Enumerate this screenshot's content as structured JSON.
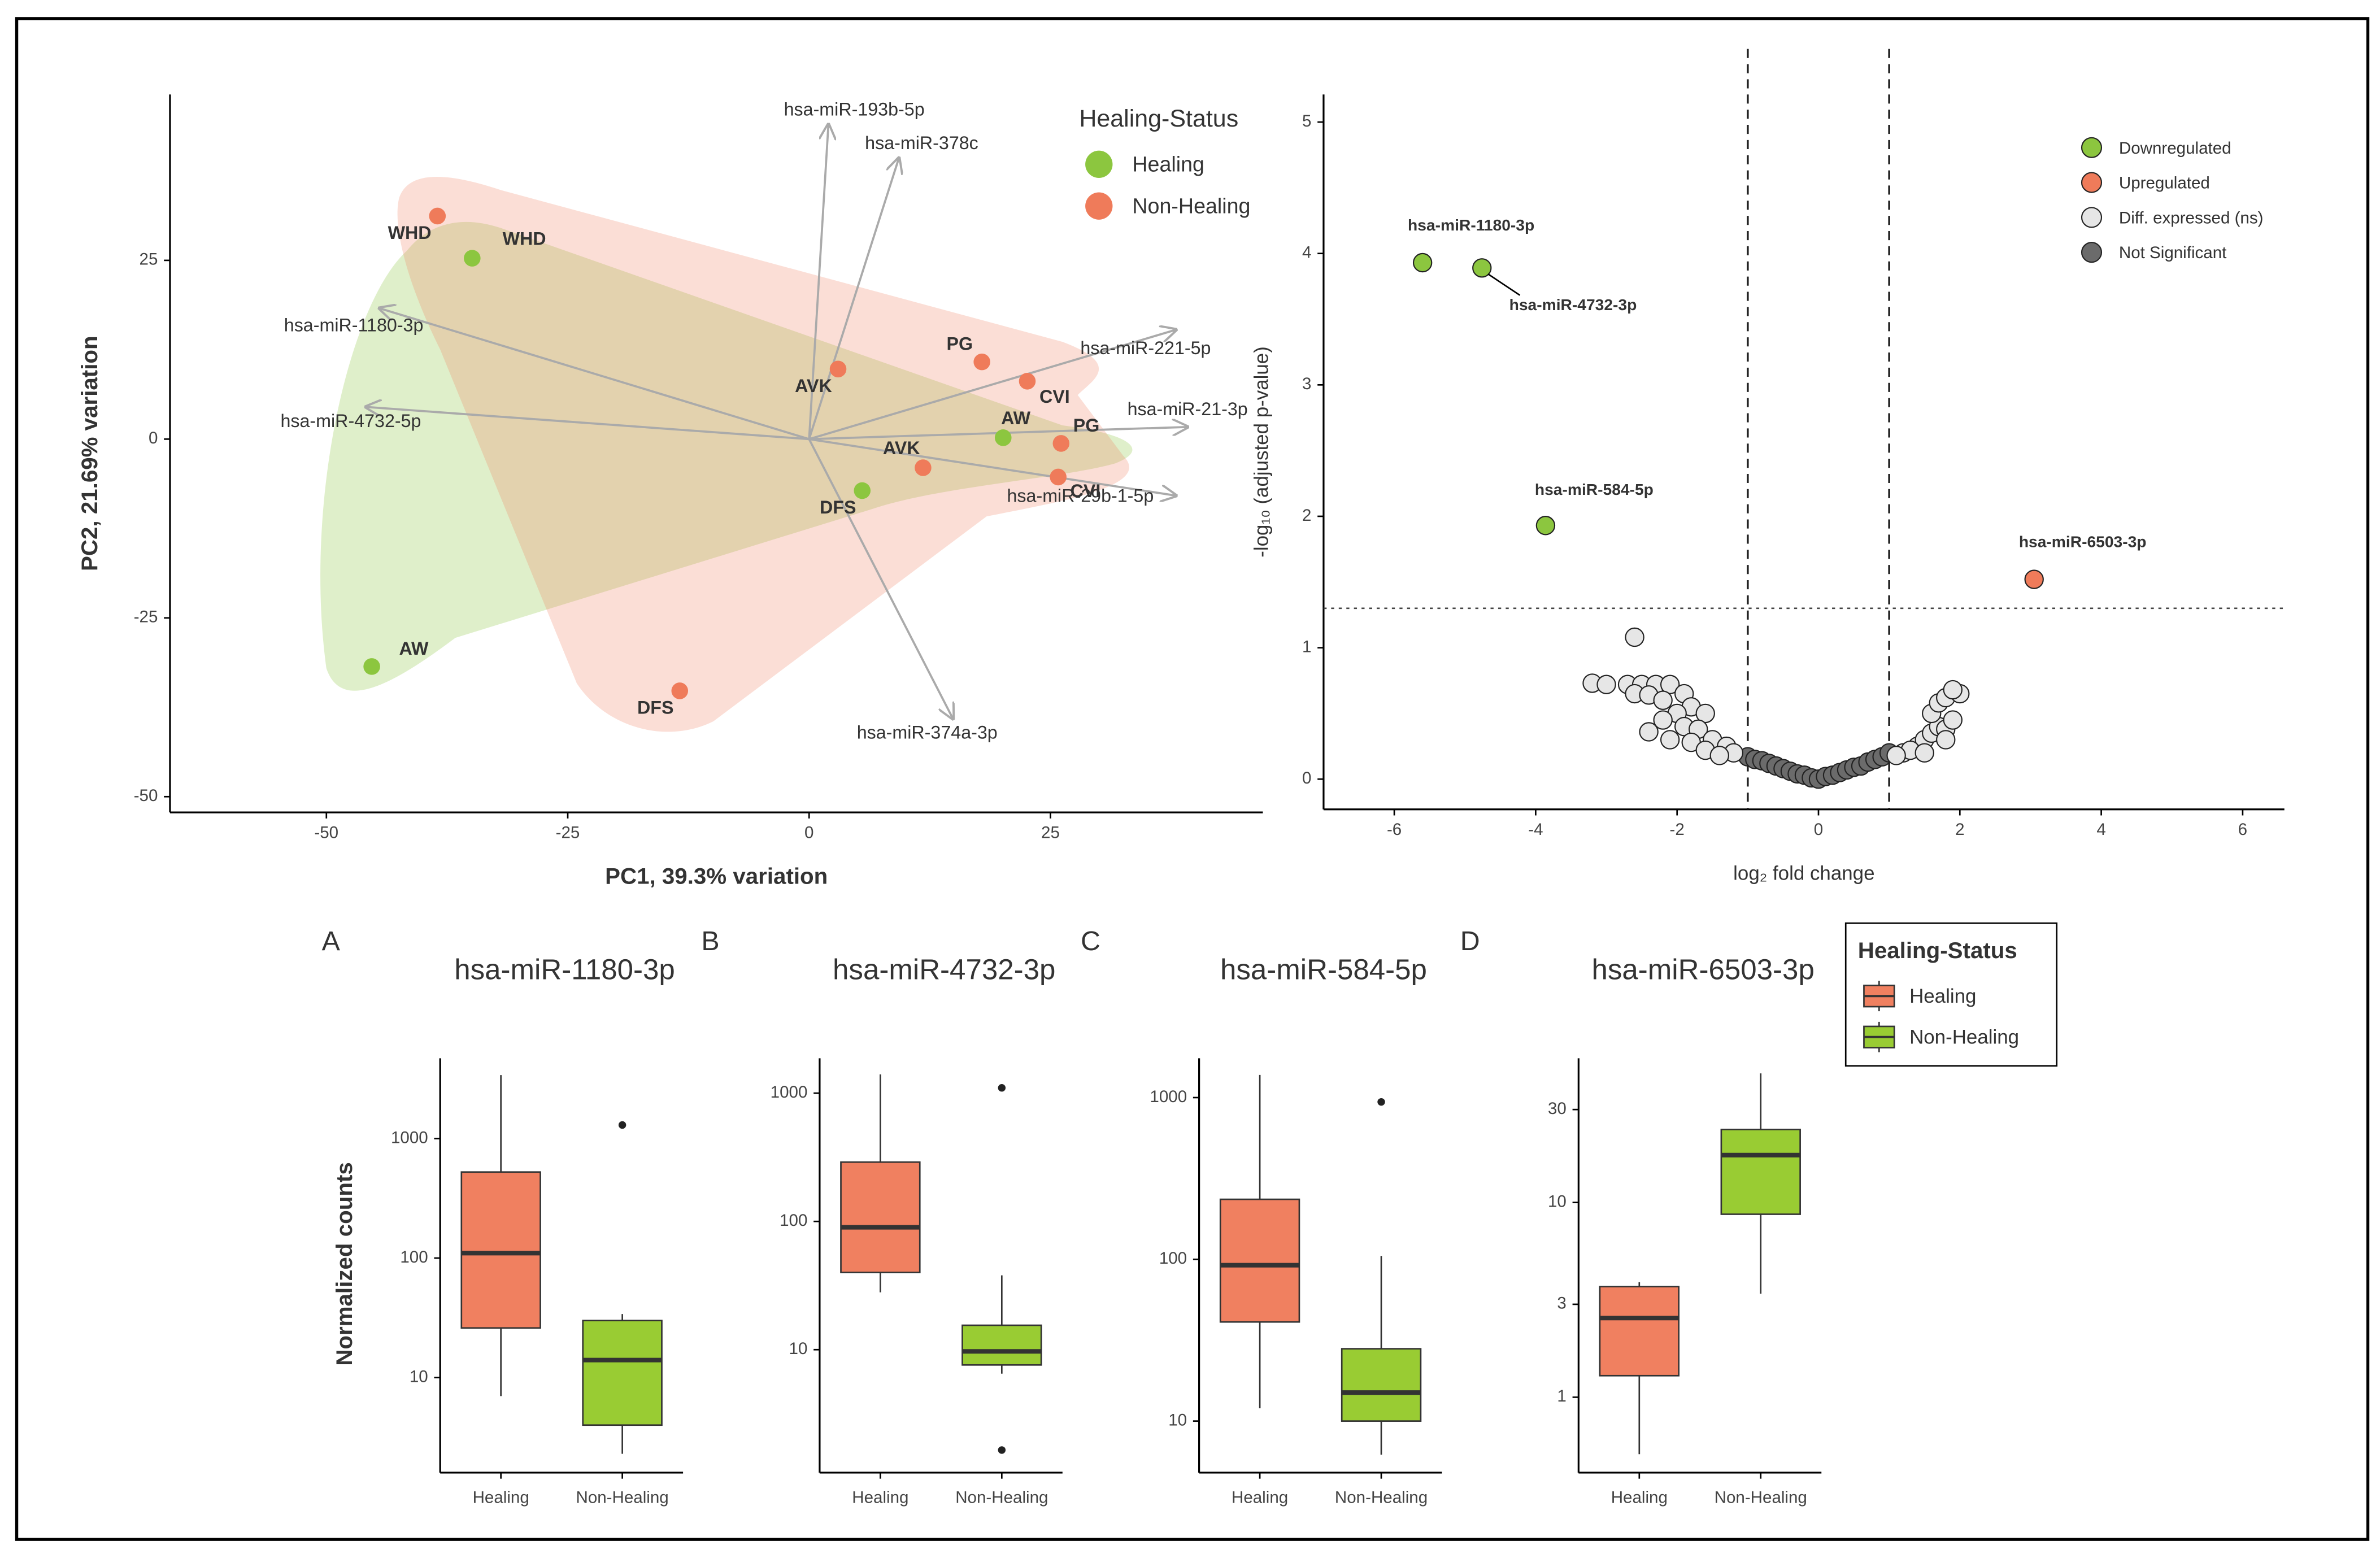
{
  "chart_data": [
    {
      "type": "scatter",
      "x_label": "PC1, 39.3% variation",
      "y_label": "PC2, 21.69% variation",
      "legend_title": "Healing-Status",
      "legend_position": "top-right",
      "xlim": [
        -66.2,
        47
      ],
      "ylim": [
        -52.2,
        48.2
      ],
      "xticks": [
        -50,
        -25,
        0,
        25
      ],
      "yticks": [
        -50,
        -25,
        0,
        25
      ],
      "series": [
        {
          "name": "Healing",
          "color": "#8cc63f",
          "x": [
            -34.9,
            20.1,
            5.5,
            -45.3
          ],
          "values": [
            25.3,
            0.2,
            -7.2,
            -31.8
          ],
          "point_labels": [
            "WHD",
            "AW",
            "DFS",
            "AW"
          ]
        },
        {
          "name": "Non-Healing",
          "color": "#ef7b5a",
          "x": [
            -38.5,
            3,
            17.9,
            22.6,
            26.1,
            11.8,
            25.8,
            -13.4
          ],
          "values": [
            31.2,
            9.8,
            10.8,
            8.1,
            -0.6,
            -4,
            -5.3,
            -35.2
          ],
          "point_labels": [
            "WHD",
            "AVK",
            "PG",
            "CVI",
            "PG",
            "AVK",
            "CVI",
            "DFS"
          ]
        }
      ],
      "loadings": [
        {
          "name": "hsa-miR-193b-5p",
          "x": 2,
          "y": 44
        },
        {
          "name": "hsa-miR-378c",
          "x": 9.3,
          "y": 39.3
        },
        {
          "name": "hsa-miR-1180-3p",
          "x": -44.5,
          "y": 18.3
        },
        {
          "name": "hsa-miR-4732-5p",
          "x": -45.9,
          "y": 4.5
        },
        {
          "name": "hsa-miR-221-5p",
          "x": 38,
          "y": 15.3
        },
        {
          "name": "hsa-miR-21-3p",
          "x": 39.2,
          "y": 1.7
        },
        {
          "name": "hsa-miR-29b-1-5p",
          "x": 38,
          "y": -7.9
        },
        {
          "name": "hsa-miR-374a-3p",
          "x": 14.9,
          "y": -39.1
        }
      ]
    },
    {
      "type": "scatter",
      "x_label": "log₂ fold change",
      "y_label": "-log₁₀ (adjusted p-value)",
      "legend_position": "top-right",
      "xlim": [
        -7,
        6.59
      ],
      "ylim": [
        -0.23,
        5.21
      ],
      "xticks": [
        -6,
        -4,
        -2,
        0,
        2,
        4,
        6
      ],
      "yticks": [
        0,
        1,
        2,
        3,
        4,
        5
      ],
      "vlines": [
        -1,
        1
      ],
      "hline": 1.3,
      "series": [
        {
          "name": "Downregulated",
          "color": "#8cc63f",
          "x": [
            -5.6,
            -4.76,
            -3.86
          ],
          "values": [
            3.93,
            3.89,
            1.93
          ],
          "point_labels": [
            "hsa-miR-1180-3p",
            "hsa-miR-4732-3p",
            "hsa-miR-584-5p"
          ]
        },
        {
          "name": "Upregulated",
          "color": "#ef7b5a",
          "x": [
            3.05
          ],
          "values": [
            1.52
          ],
          "point_labels": [
            "hsa-miR-6503-3p"
          ]
        },
        {
          "name": "Diff. expressed (ns)",
          "color": "#e6e6e6",
          "x": [
            -2.6,
            -3.2,
            -3.0,
            -2.7,
            -2.5,
            -2.3,
            -2.1,
            -1.9,
            -2.6,
            -2.4,
            -2.2,
            -1.8,
            -2.0,
            -1.6,
            -2.2,
            -1.9,
            -1.7,
            -2.4,
            -2.1,
            -1.5,
            -1.8,
            -1.3,
            -1.6,
            -1.2,
            -1.4,
            1.2,
            1.4,
            1.5,
            1.6,
            1.7,
            1.8,
            1.9,
            1.6,
            1.7,
            1.8,
            2.0,
            1.9,
            1.3,
            1.5,
            1.8,
            1.1
          ],
          "values": [
            1.08,
            0.73,
            0.72,
            0.72,
            0.72,
            0.72,
            0.72,
            0.65,
            0.65,
            0.64,
            0.6,
            0.55,
            0.5,
            0.5,
            0.45,
            0.4,
            0.38,
            0.36,
            0.3,
            0.3,
            0.28,
            0.25,
            0.22,
            0.2,
            0.18,
            0.2,
            0.25,
            0.3,
            0.35,
            0.4,
            0.38,
            0.45,
            0.5,
            0.58,
            0.62,
            0.65,
            0.68,
            0.22,
            0.2,
            0.3,
            0.18
          ]
        },
        {
          "name": "Not Significant",
          "color": "#6b6b6b",
          "x": [
            -1,
            -0.9,
            -0.8,
            -0.7,
            -0.6,
            -0.5,
            -0.4,
            -0.3,
            -0.2,
            -0.1,
            0,
            0.1,
            0.2,
            0.3,
            0.4,
            0.5,
            0.6,
            0.7,
            0.8,
            0.9,
            1
          ],
          "values": [
            0.17,
            0.15,
            0.14,
            0.12,
            0.1,
            0.08,
            0.06,
            0.04,
            0.03,
            0.01,
            0,
            0.02,
            0.03,
            0.05,
            0.07,
            0.09,
            0.1,
            0.13,
            0.15,
            0.17,
            0.2
          ]
        }
      ]
    },
    {
      "type": "box",
      "panel_label": "A",
      "title": "hsa-miR-1180-3p",
      "y_label": "Normalized counts",
      "log_y": true,
      "legend_title": "Healing-Status",
      "legend_position": "right",
      "categories": [
        "Healing",
        "Non-Healing"
      ],
      "ylim": [
        1.6,
        4700
      ],
      "yticks": [
        10,
        100,
        1000
      ],
      "series": [
        {
          "name": "Healing",
          "color": "#f08060",
          "min": 7,
          "q1": 26,
          "median": 110,
          "q3": 525,
          "max": 3400,
          "outliers": []
        },
        {
          "name": "Non-Healing",
          "color": "#99cc33",
          "min": 2.3,
          "q1": 4,
          "median": 14,
          "q3": 30,
          "max": 34,
          "outliers": [
            1300
          ]
        }
      ]
    },
    {
      "type": "box",
      "panel_label": "B",
      "title": "hsa-miR-4732-3p",
      "log_y": true,
      "categories": [
        "Healing",
        "Non-Healing"
      ],
      "ylim": [
        1.1,
        1870
      ],
      "yticks": [
        10,
        100,
        1000
      ],
      "series": [
        {
          "color": "#f08060",
          "min": 28,
          "q1": 40,
          "median": 90,
          "q3": 290,
          "max": 1400,
          "outliers": []
        },
        {
          "color": "#99cc33",
          "min": 6.5,
          "q1": 7.6,
          "median": 9.7,
          "q3": 15.5,
          "max": 38,
          "outliers": [
            1100,
            1.65
          ]
        }
      ]
    },
    {
      "type": "box",
      "panel_label": "C",
      "title": "hsa-miR-584-5p",
      "log_y": true,
      "categories": [
        "Healing",
        "Non-Healing"
      ],
      "ylim": [
        4.8,
        1750
      ],
      "yticks": [
        10,
        100,
        1000
      ],
      "series": [
        {
          "color": "#f08060",
          "min": 12,
          "q1": 41,
          "median": 92,
          "q3": 235,
          "max": 1380,
          "outliers": []
        },
        {
          "color": "#99cc33",
          "min": 6.2,
          "q1": 10,
          "median": 15,
          "q3": 28,
          "max": 105,
          "outliers": [
            940
          ]
        }
      ]
    },
    {
      "type": "box",
      "panel_label": "D",
      "title": "hsa-miR-6503-3p",
      "log_y": true,
      "categories": [
        "Healing",
        "Non-Healing"
      ],
      "ylim": [
        0.41,
        55
      ],
      "yticks": [
        1,
        3,
        10,
        30
      ],
      "series": [
        {
          "color": "#f08060",
          "min": 0.51,
          "q1": 1.29,
          "median": 2.55,
          "q3": 3.7,
          "max": 3.9,
          "outliers": []
        },
        {
          "color": "#99cc33",
          "min": 3.4,
          "q1": 8.7,
          "median": 17.5,
          "q3": 23.7,
          "max": 46,
          "outliers": []
        }
      ]
    }
  ]
}
